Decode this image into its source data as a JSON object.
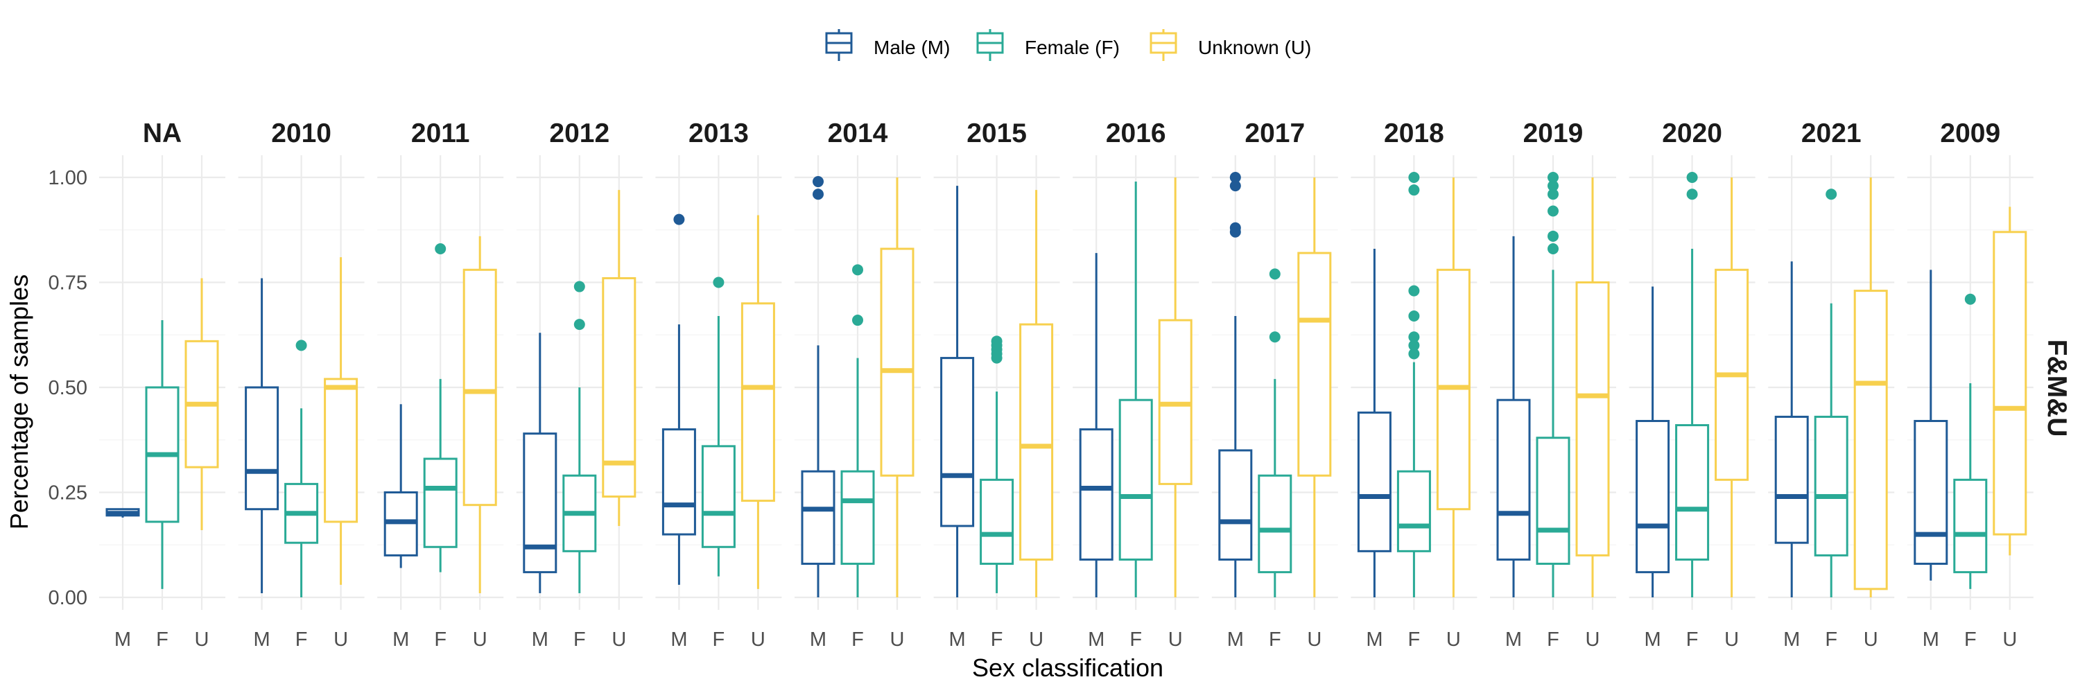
{
  "chart_data": {
    "type": "boxplot",
    "title": "",
    "xlabel": "Sex classification",
    "ylabel": "Percentage of samples",
    "ylim": [
      0,
      1
    ],
    "y_ticks": [
      "0.00",
      "0.25",
      "0.50",
      "0.75",
      "1.00"
    ],
    "y_tick_values": [
      0,
      0.25,
      0.5,
      0.75,
      1
    ],
    "categories": [
      "M",
      "F",
      "U"
    ],
    "grid": true,
    "legend_position": "top",
    "right_strip_label": "F&M&U",
    "series": [
      {
        "key": "M",
        "name": "Male (M)",
        "color": "#1F5A96"
      },
      {
        "key": "F",
        "name": "Female (F)",
        "color": "#2AAA96"
      },
      {
        "key": "U",
        "name": "Unknown (U)",
        "color": "#F7D04E"
      }
    ],
    "facets": [
      {
        "label": "NA",
        "boxes": {
          "M": {
            "min": 0.19,
            "q1": 0.195,
            "median": 0.2,
            "q3": 0.21,
            "max": 0.21,
            "outliers": []
          },
          "F": {
            "min": 0.02,
            "q1": 0.18,
            "median": 0.34,
            "q3": 0.5,
            "max": 0.66,
            "outliers": []
          },
          "U": {
            "min": 0.16,
            "q1": 0.31,
            "median": 0.46,
            "q3": 0.61,
            "max": 0.76,
            "outliers": []
          }
        }
      },
      {
        "label": "2010",
        "boxes": {
          "M": {
            "min": 0.01,
            "q1": 0.21,
            "median": 0.3,
            "q3": 0.5,
            "max": 0.76,
            "outliers": []
          },
          "F": {
            "min": 0.0,
            "q1": 0.13,
            "median": 0.2,
            "q3": 0.27,
            "max": 0.45,
            "outliers": [
              0.6
            ]
          },
          "U": {
            "min": 0.03,
            "q1": 0.18,
            "median": 0.5,
            "q3": 0.52,
            "max": 0.81,
            "outliers": []
          }
        }
      },
      {
        "label": "2011",
        "boxes": {
          "M": {
            "min": 0.07,
            "q1": 0.1,
            "median": 0.18,
            "q3": 0.25,
            "max": 0.46,
            "outliers": []
          },
          "F": {
            "min": 0.06,
            "q1": 0.12,
            "median": 0.26,
            "q3": 0.33,
            "max": 0.52,
            "outliers": [
              0.83
            ]
          },
          "U": {
            "min": 0.01,
            "q1": 0.22,
            "median": 0.49,
            "q3": 0.78,
            "max": 0.86,
            "outliers": []
          }
        }
      },
      {
        "label": "2012",
        "boxes": {
          "M": {
            "min": 0.01,
            "q1": 0.06,
            "median": 0.12,
            "q3": 0.39,
            "max": 0.63,
            "outliers": []
          },
          "F": {
            "min": 0.01,
            "q1": 0.11,
            "median": 0.2,
            "q3": 0.29,
            "max": 0.5,
            "outliers": [
              0.65,
              0.74
            ]
          },
          "U": {
            "min": 0.17,
            "q1": 0.24,
            "median": 0.32,
            "q3": 0.76,
            "max": 0.97,
            "outliers": []
          }
        }
      },
      {
        "label": "2013",
        "boxes": {
          "M": {
            "min": 0.03,
            "q1": 0.15,
            "median": 0.22,
            "q3": 0.4,
            "max": 0.65,
            "outliers": [
              0.9
            ]
          },
          "F": {
            "min": 0.05,
            "q1": 0.12,
            "median": 0.2,
            "q3": 0.36,
            "max": 0.67,
            "outliers": [
              0.75
            ]
          },
          "U": {
            "min": 0.02,
            "q1": 0.23,
            "median": 0.5,
            "q3": 0.7,
            "max": 0.91,
            "outliers": []
          }
        }
      },
      {
        "label": "2014",
        "boxes": {
          "M": {
            "min": 0.0,
            "q1": 0.08,
            "median": 0.21,
            "q3": 0.3,
            "max": 0.6,
            "outliers": [
              0.96,
              0.99
            ]
          },
          "F": {
            "min": 0.0,
            "q1": 0.08,
            "median": 0.23,
            "q3": 0.3,
            "max": 0.57,
            "outliers": [
              0.66,
              0.78
            ]
          },
          "U": {
            "min": 0.0,
            "q1": 0.29,
            "median": 0.54,
            "q3": 0.83,
            "max": 1.0,
            "outliers": []
          }
        }
      },
      {
        "label": "2015",
        "boxes": {
          "M": {
            "min": 0.0,
            "q1": 0.17,
            "median": 0.29,
            "q3": 0.57,
            "max": 0.98,
            "outliers": []
          },
          "F": {
            "min": 0.01,
            "q1": 0.08,
            "median": 0.15,
            "q3": 0.28,
            "max": 0.49,
            "outliers": [
              0.57,
              0.58,
              0.59,
              0.6,
              0.61
            ]
          },
          "U": {
            "min": 0.0,
            "q1": 0.09,
            "median": 0.36,
            "q3": 0.65,
            "max": 0.97,
            "outliers": []
          }
        }
      },
      {
        "label": "2016",
        "boxes": {
          "M": {
            "min": 0.0,
            "q1": 0.09,
            "median": 0.26,
            "q3": 0.4,
            "max": 0.82,
            "outliers": []
          },
          "F": {
            "min": 0.0,
            "q1": 0.09,
            "median": 0.24,
            "q3": 0.47,
            "max": 0.99,
            "outliers": []
          },
          "U": {
            "min": 0.0,
            "q1": 0.27,
            "median": 0.46,
            "q3": 0.66,
            "max": 1.0,
            "outliers": []
          }
        }
      },
      {
        "label": "2017",
        "boxes": {
          "M": {
            "min": 0.0,
            "q1": 0.09,
            "median": 0.18,
            "q3": 0.35,
            "max": 0.67,
            "outliers": [
              0.87,
              0.88,
              0.98,
              1.0
            ]
          },
          "F": {
            "min": 0.0,
            "q1": 0.06,
            "median": 0.16,
            "q3": 0.29,
            "max": 0.52,
            "outliers": [
              0.62,
              0.77
            ]
          },
          "U": {
            "min": 0.0,
            "q1": 0.29,
            "median": 0.66,
            "q3": 0.82,
            "max": 1.0,
            "outliers": []
          }
        }
      },
      {
        "label": "2018",
        "boxes": {
          "M": {
            "min": 0.0,
            "q1": 0.11,
            "median": 0.24,
            "q3": 0.44,
            "max": 0.83,
            "outliers": []
          },
          "F": {
            "min": 0.0,
            "q1": 0.11,
            "median": 0.17,
            "q3": 0.3,
            "max": 0.56,
            "outliers": [
              0.58,
              0.6,
              0.62,
              0.67,
              0.73,
              0.97,
              1.0
            ]
          },
          "U": {
            "min": 0.0,
            "q1": 0.21,
            "median": 0.5,
            "q3": 0.78,
            "max": 1.0,
            "outliers": []
          }
        }
      },
      {
        "label": "2019",
        "boxes": {
          "M": {
            "min": 0.0,
            "q1": 0.09,
            "median": 0.2,
            "q3": 0.47,
            "max": 0.86,
            "outliers": []
          },
          "F": {
            "min": 0.0,
            "q1": 0.08,
            "median": 0.16,
            "q3": 0.38,
            "max": 0.78,
            "outliers": [
              0.83,
              0.86,
              0.92,
              0.96,
              0.98,
              1.0
            ]
          },
          "U": {
            "min": 0.0,
            "q1": 0.1,
            "median": 0.48,
            "q3": 0.75,
            "max": 1.0,
            "outliers": []
          }
        }
      },
      {
        "label": "2020",
        "boxes": {
          "M": {
            "min": 0.0,
            "q1": 0.06,
            "median": 0.17,
            "q3": 0.42,
            "max": 0.74,
            "outliers": []
          },
          "F": {
            "min": 0.0,
            "q1": 0.09,
            "median": 0.21,
            "q3": 0.41,
            "max": 0.83,
            "outliers": [
              0.96,
              1.0
            ]
          },
          "U": {
            "min": 0.0,
            "q1": 0.28,
            "median": 0.53,
            "q3": 0.78,
            "max": 1.0,
            "outliers": []
          }
        }
      },
      {
        "label": "2021",
        "boxes": {
          "M": {
            "min": 0.0,
            "q1": 0.13,
            "median": 0.24,
            "q3": 0.43,
            "max": 0.8,
            "outliers": []
          },
          "F": {
            "min": 0.0,
            "q1": 0.1,
            "median": 0.24,
            "q3": 0.43,
            "max": 0.7,
            "outliers": [
              0.96
            ]
          },
          "U": {
            "min": 0.0,
            "q1": 0.02,
            "median": 0.51,
            "q3": 0.73,
            "max": 1.0,
            "outliers": []
          }
        }
      },
      {
        "label": "2009",
        "boxes": {
          "M": {
            "min": 0.04,
            "q1": 0.08,
            "median": 0.15,
            "q3": 0.42,
            "max": 0.78,
            "outliers": []
          },
          "F": {
            "min": 0.02,
            "q1": 0.06,
            "median": 0.15,
            "q3": 0.28,
            "max": 0.51,
            "outliers": [
              0.71
            ]
          },
          "U": {
            "min": 0.1,
            "q1": 0.15,
            "median": 0.45,
            "q3": 0.87,
            "max": 0.93,
            "outliers": []
          }
        }
      }
    ]
  }
}
